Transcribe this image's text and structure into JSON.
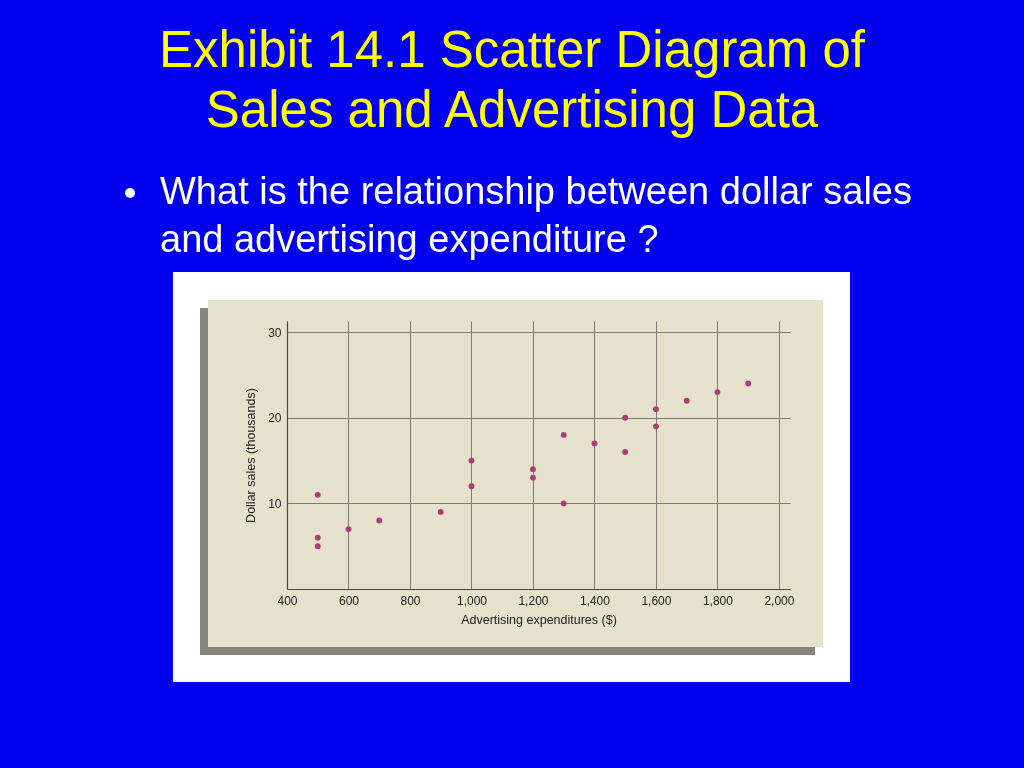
{
  "chart_data": {
    "type": "scatter",
    "title": "Exhibit 14.1 Scatter Diagram of Sales and Advertising Data",
    "subtitle": "What is the relationship between dollar sales and advertising expenditure ?",
    "xlabel": "Advertising expenditures ($)",
    "ylabel": "Dollar sales (thousands)",
    "x": [
      500,
      500,
      500,
      600,
      700,
      900,
      1000,
      1000,
      1200,
      1200,
      1300,
      1300,
      1400,
      1500,
      1500,
      1600,
      1600,
      1700,
      1800,
      1900
    ],
    "series": [
      {
        "color": "#b2387c",
        "values": [
          11,
          6,
          5,
          7,
          8,
          9,
          15,
          12,
          14,
          13,
          18,
          10,
          17,
          20,
          16,
          21,
          19,
          22,
          23,
          24
        ]
      }
    ],
    "xlim": [
      400,
      2036
    ],
    "ylim": [
      0,
      31.3
    ],
    "xticks": [
      400,
      600,
      800,
      {
        "value": 1000,
        "label": "1,000"
      },
      {
        "value": 1200,
        "label": "1,200"
      },
      {
        "value": 1400,
        "label": "1,400"
      },
      {
        "value": 1600,
        "label": "1,600"
      },
      {
        "value": 1800,
        "label": "1,800"
      },
      {
        "value": 2000,
        "label": "2,000"
      }
    ],
    "yticks": [
      10,
      20,
      30
    ],
    "grid": true,
    "marker": "circle"
  }
}
